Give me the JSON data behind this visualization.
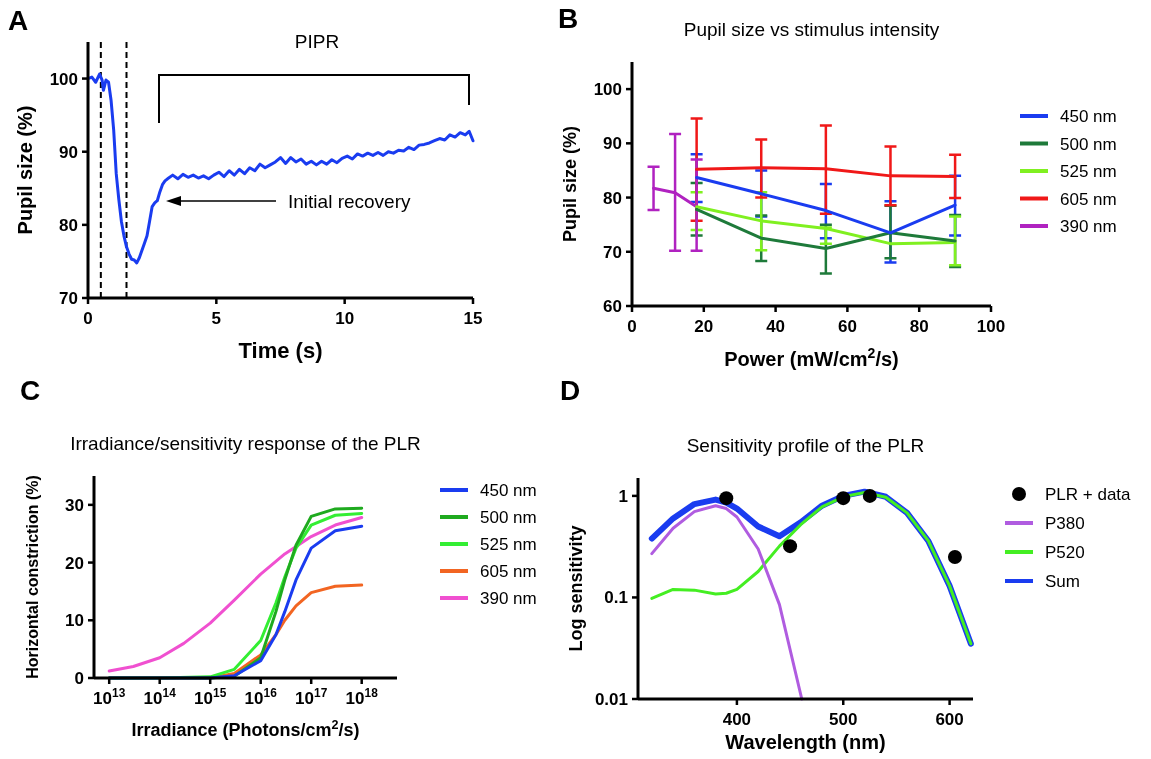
{
  "chart_data": [
    {
      "type": "line",
      "xlabel": "Time (s)",
      "ylabel": "Pupil size (%)",
      "annotations": [
        "A",
        "PIPR",
        "Initial recovery"
      ],
      "xlim": [
        0,
        15
      ],
      "ylim": [
        70,
        105
      ],
      "xticks": [
        0,
        5,
        10,
        15
      ],
      "yticks": [
        70,
        80,
        90,
        100
      ],
      "ref_lines": [
        {
          "axis": "x",
          "value": 0.5,
          "color": "#000000",
          "line_style": "dashed"
        },
        {
          "axis": "x",
          "value": 1.5,
          "color": "#000000",
          "line_style": "dashed"
        }
      ],
      "series": [
        {
          "color": "#1a3cf0",
          "x": [
            0,
            0.15,
            0.3,
            0.45,
            0.55,
            0.6,
            0.7,
            0.8,
            0.9,
            1.0,
            1.1,
            1.2,
            1.3,
            1.4,
            1.5,
            1.6,
            1.7,
            1.8,
            1.9,
            2.0,
            2.1,
            2.2,
            2.3,
            2.4,
            2.5,
            2.6,
            2.7,
            2.8,
            2.9,
            3.0,
            3.1,
            3.3,
            3.5,
            3.7,
            3.9,
            4.1,
            4.3,
            4.5,
            4.7,
            4.9,
            5.1,
            5.3,
            5.5,
            5.7,
            5.9,
            6.1,
            6.3,
            6.5,
            6.7,
            6.9,
            7.1,
            7.3,
            7.5,
            7.7,
            7.9,
            8.1,
            8.3,
            8.5,
            8.7,
            8.9,
            9.1,
            9.3,
            9.5,
            9.7,
            9.9,
            10.1,
            10.3,
            10.5,
            10.7,
            10.9,
            11.1,
            11.3,
            11.5,
            11.7,
            11.9,
            12.1,
            12.3,
            12.5,
            12.7,
            12.9,
            13.1,
            13.3,
            13.5,
            13.7,
            13.9,
            14.1,
            14.3,
            14.5,
            14.7,
            14.85,
            15
          ],
          "values": [
            100,
            100.2,
            99.5,
            100.6,
            99.8,
            98.4,
            99.8,
            99.5,
            97,
            93,
            87,
            83.5,
            80.5,
            78.5,
            77,
            76,
            75.3,
            75.2,
            74.8,
            75.5,
            76.5,
            77.5,
            78.5,
            80.5,
            82.5,
            83,
            83.3,
            84.5,
            85.5,
            86,
            86.3,
            86.8,
            86.3,
            86.9,
            86.5,
            86.8,
            86.4,
            86.7,
            86.3,
            86.8,
            87.2,
            86.6,
            87.4,
            86.8,
            87.6,
            87,
            87.8,
            87.4,
            88.3,
            87.8,
            88.2,
            88.6,
            89.2,
            88.4,
            89.2,
            88.6,
            89,
            88.3,
            88.7,
            88.2,
            88.7,
            88.3,
            88.9,
            88.5,
            89.1,
            89.4,
            89,
            89.7,
            89.4,
            89.8,
            89.5,
            89.9,
            89.5,
            90,
            89.8,
            90.2,
            90.1,
            90.6,
            90.3,
            90.9,
            91,
            91.2,
            91.5,
            91.8,
            91.6,
            92.3,
            92,
            92.6,
            92.3,
            92.8,
            91.5
          ]
        }
      ]
    },
    {
      "type": "line",
      "title": "Pupil size vs stimulus intensity",
      "xlabel": "Power (mW/cm$^{2}$/s)",
      "ylabel": "Pupil size (%)",
      "annotations": [
        "B"
      ],
      "xlim": [
        0,
        100
      ],
      "ylim": [
        60,
        105
      ],
      "xticks": [
        0,
        20,
        40,
        60,
        80,
        100
      ],
      "yticks": [
        60,
        70,
        80,
        90,
        100
      ],
      "legend": "right",
      "x": [
        18,
        36,
        54,
        72,
        90
      ],
      "series": [
        {
          "name": "450 nm",
          "color": "#1a3cf0",
          "values": [
            83.7,
            80.7,
            77.6,
            73.5,
            78.6
          ],
          "errors": [
            [
              79.2,
              88
            ],
            [
              76.5,
              85
            ],
            [
              72.5,
              82.5
            ],
            [
              68,
              79.3
            ],
            [
              73,
              84
            ]
          ]
        },
        {
          "name": "500 nm",
          "color": "#1e7a3a",
          "values": [
            77.8,
            72.5,
            70.6,
            73.5,
            72
          ],
          "errors": [
            [
              73,
              82.7
            ],
            [
              68.3,
              76.7
            ],
            [
              66,
              75
            ],
            [
              68.8,
              78.5
            ],
            [
              67.2,
              76.8
            ]
          ]
        },
        {
          "name": "525 nm",
          "color": "#80f020",
          "values": [
            78.3,
            75.7,
            74.3,
            71.5,
            71.7
          ],
          "errors": [
            [
              74,
              81
            ],
            [
              70.3,
              81
            ],
            [
              71.5,
              74.5
            ],
            null,
            [
              67.5,
              76.5
            ]
          ]
        },
        {
          "name": "605 nm",
          "color": "#f01818",
          "values": [
            85.2,
            85.5,
            85.3,
            84,
            83.9
          ],
          "errors": [
            [
              75.7,
              94.6
            ],
            [
              80,
              90.7
            ],
            [
              77,
              93.3
            ],
            [
              78.6,
              89.4
            ],
            [
              79.9,
              87.9
            ]
          ]
        },
        {
          "name": "390 nm",
          "color": "#b022c0",
          "x": [
            6,
            12,
            18
          ],
          "values": [
            81.7,
            80.9,
            78.3
          ],
          "errors": [
            [
              77.7,
              85.7
            ],
            [
              70.2,
              91.7
            ],
            [
              70.2,
              87
            ]
          ]
        }
      ]
    },
    {
      "type": "line",
      "title": "Irradiance/sensitivity response of the PLR",
      "xlabel": "Irradiance (Photons/cm$^{2}$/s)",
      "ylabel": "Horizontal constriction (%)",
      "annotations": [
        "C"
      ],
      "log": "x",
      "xlim": [
        5000000000000.0,
        5e+18
      ],
      "ylim": [
        0,
        35
      ],
      "yticks": [
        0,
        10,
        20,
        30
      ],
      "legend": "right",
      "xticks": [
        {
          "value": 10000000000000.0,
          "label": "10$^{13}$"
        },
        {
          "value": 100000000000000.0,
          "label": "10$^{14}$"
        },
        {
          "value": 1000000000000000.0,
          "label": "10$^{15}$"
        },
        {
          "value": 1e+16,
          "label": "10$^{16}$"
        },
        {
          "value": 1e+17,
          "label": "10$^{17}$"
        },
        {
          "value": 1e+18,
          "label": "10$^{18}$"
        }
      ],
      "series": [
        {
          "name": "450 nm",
          "color": "#1a3cf0",
          "x": [
            10000000000000.0,
            100000000000000.0,
            1000000000000000.0,
            3000000000000000.0,
            1e+16,
            2e+16,
            3e+16,
            5e+16,
            1e+17,
            3e+17,
            1e+18
          ],
          "values": [
            0,
            0,
            0,
            0.4,
            3,
            7.5,
            11.5,
            17,
            22.5,
            25.5,
            26.3
          ]
        },
        {
          "name": "500 nm",
          "color": "#1faa1f",
          "x": [
            10000000000000.0,
            100000000000000.0,
            1000000000000000.0,
            3000000000000000.0,
            1e+16,
            2e+16,
            3e+16,
            5e+16,
            1e+17,
            3e+17,
            1e+18
          ],
          "values": [
            0,
            0,
            0,
            0.3,
            3.5,
            11.5,
            17,
            23,
            28,
            29.3,
            29.4
          ]
        },
        {
          "name": "525 nm",
          "color": "#33ee33",
          "x": [
            10000000000000.0,
            100000000000000.0,
            1000000000000000.0,
            3000000000000000.0,
            1e+16,
            2e+16,
            3e+16,
            5e+16,
            1e+17,
            3e+17,
            1e+18
          ],
          "values": [
            0,
            0,
            0.2,
            1.5,
            6.5,
            13,
            17.5,
            22.5,
            26.5,
            28.2,
            28.5
          ]
        },
        {
          "name": "605 nm",
          "color": "#f26522",
          "x": [
            10000000000000.0,
            100000000000000.0,
            1000000000000000.0,
            3000000000000000.0,
            1e+16,
            2e+16,
            3e+16,
            5e+16,
            1e+17,
            3e+17,
            1e+18
          ],
          "values": [
            0,
            0,
            0,
            0.8,
            4,
            7.5,
            10,
            12.5,
            14.8,
            15.9,
            16.1
          ]
        },
        {
          "name": "390 nm",
          "color": "#f050d0",
          "x": [
            10000000000000.0,
            30000000000000.0,
            100000000000000.0,
            300000000000000.0,
            1000000000000000.0,
            3000000000000000.0,
            1e+16,
            3e+16,
            1e+17,
            3e+17,
            1e+18
          ],
          "values": [
            1.2,
            2,
            3.5,
            6,
            9.5,
            13.5,
            18,
            21.5,
            24.5,
            26.5,
            27.8
          ]
        }
      ]
    },
    {
      "type": "line",
      "title": "Sensitivity profile of the PLR",
      "xlabel": "Wavelength (nm)",
      "ylabel": "Log sensitivity",
      "annotations": [
        "D"
      ],
      "log": "y",
      "xlim": [
        307,
        622
      ],
      "ylim": [
        0.01,
        1.5
      ],
      "xticks": [
        400,
        500,
        600
      ],
      "yticks": [
        {
          "value": 0.01,
          "label": "0.01"
        },
        {
          "value": 0.1,
          "label": "0.1"
        },
        {
          "value": 1,
          "label": "1"
        }
      ],
      "legend": "right",
      "series": [
        {
          "name": "PLR + data",
          "type": "scatter",
          "color": "#000000",
          "x": [
            390,
            450,
            500,
            525,
            605
          ],
          "values": [
            0.95,
            0.32,
            0.95,
            1.0,
            0.25
          ]
        },
        {
          "name": "P380",
          "color": "#b05ce0",
          "x": [
            320,
            340,
            360,
            380,
            390,
            400,
            420,
            440,
            461
          ],
          "values": [
            0.27,
            0.48,
            0.7,
            0.8,
            0.75,
            0.62,
            0.3,
            0.085,
            0.01
          ]
        },
        {
          "name": "P520",
          "color": "#44ee22",
          "x": [
            320,
            340,
            360,
            380,
            390,
            400,
            420,
            440,
            460,
            480,
            500,
            520,
            540,
            560,
            580,
            600,
            620
          ],
          "values": [
            0.098,
            0.12,
            0.118,
            0.108,
            0.11,
            0.12,
            0.18,
            0.32,
            0.52,
            0.78,
            0.98,
            1.08,
            0.97,
            0.68,
            0.36,
            0.13,
            0.035
          ]
        },
        {
          "name": "Sum",
          "color": "#1a3cf0",
          "x": [
            320,
            340,
            360,
            380,
            390,
            400,
            420,
            440,
            460,
            480,
            500,
            520,
            540,
            560,
            580,
            600,
            620
          ],
          "values": [
            0.38,
            0.6,
            0.83,
            0.92,
            0.86,
            0.75,
            0.5,
            0.4,
            0.55,
            0.8,
            1.0,
            1.1,
            0.98,
            0.68,
            0.36,
            0.13,
            0.035
          ]
        }
      ]
    }
  ]
}
